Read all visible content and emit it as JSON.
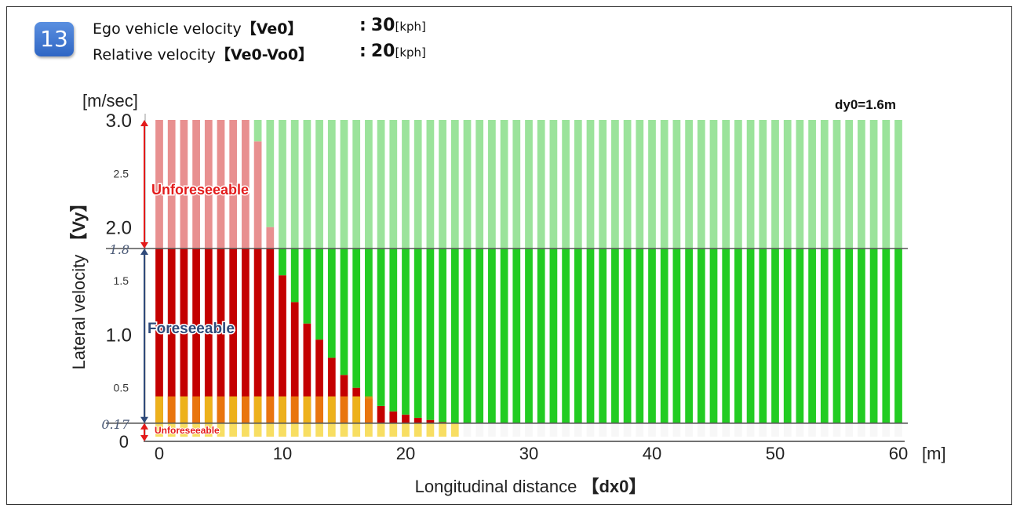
{
  "header": {
    "badge": "13",
    "ego_label": "Ego vehicle velocity",
    "ego_symbol": "【Ve0】",
    "ego_value": "30",
    "ego_unit": "[kph]",
    "rel_label": "Relative velocity",
    "rel_symbol": "【Ve0-Vo0】",
    "rel_value": "20",
    "rel_unit": "[kph]",
    "colon": ":"
  },
  "chart_data": {
    "type": "heatmap",
    "title": "",
    "annotation_top_right": "dy0=1.6m",
    "ylabel_text": "Lateral velocity",
    "ylabel_symbol": "【Vy】",
    "yunit": "[m/sec]",
    "xlabel_text": "Longitudinal distance",
    "xlabel_symbol": "【dx0】",
    "xunit": "[m]",
    "xlim": [
      0,
      60
    ],
    "ylim": [
      0,
      3.0
    ],
    "x_ticks": [
      "0",
      "10",
      "20",
      "30",
      "40",
      "50",
      "60"
    ],
    "y_ticks_major": [
      "1.0",
      "2.0",
      "3.0"
    ],
    "y_ticks_minor": [
      "0.5",
      "1.5",
      "2.5"
    ],
    "y_zero": "0",
    "thresholds": [
      {
        "value": 1.8,
        "label": "1.8"
      },
      {
        "value": 0.17,
        "label": "0.17"
      }
    ],
    "regions": [
      {
        "label": "Unforeseeable",
        "from": 1.8,
        "to": 3.0,
        "color": "#e31b1b"
      },
      {
        "label": "Foreseeable",
        "from": 0.17,
        "to": 1.8,
        "color": "#2f4a7a"
      },
      {
        "label": "Unforeseeable",
        "from": 0,
        "to": 0.17,
        "color": "#e31b1b"
      }
    ],
    "x_step": 1,
    "red_boundary_vy": [
      3.0,
      3.0,
      3.0,
      3.0,
      3.0,
      3.0,
      3.0,
      3.0,
      2.8,
      2.0,
      1.55,
      1.3,
      1.1,
      0.95,
      0.78,
      0.62,
      0.5,
      0.4,
      0.33,
      0.28,
      0.25,
      0.22,
      0.2,
      0.18,
      0.17,
      0.17,
      0.17,
      0.17,
      0.17,
      0.17,
      0.17,
      0.17,
      0.17,
      0.17,
      0.17,
      0.17,
      0.17,
      0.17,
      0.17,
      0.17,
      0.17,
      0.17,
      0.17,
      0.17,
      0.17,
      0.17,
      0.17,
      0.17,
      0.17,
      0.17,
      0.17,
      0.17,
      0.17,
      0.17,
      0.17,
      0.17,
      0.17,
      0.17,
      0.17,
      0.17,
      0.17
    ],
    "colors": {
      "red": "#c40000",
      "red_faded": "#e89090",
      "green": "#22cc22",
      "green_faded": "#9be39b",
      "yellow": "#f5d020",
      "orange": "#f08a10",
      "threshold_line": "#555555",
      "arrow_red": "#e31b1b",
      "arrow_blue": "#2f4a7a"
    }
  }
}
